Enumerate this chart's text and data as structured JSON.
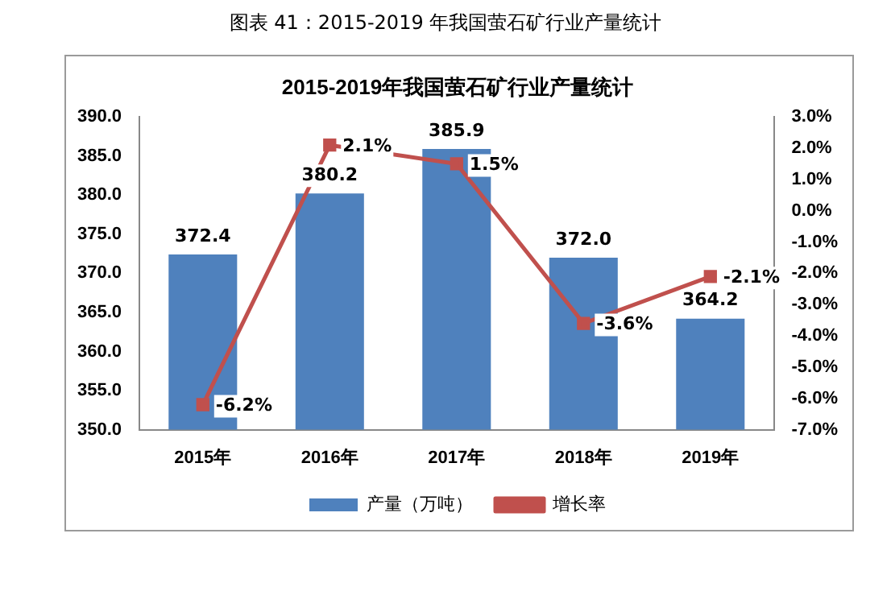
{
  "chart_data": {
    "type": "bar",
    "title": "2015-2019年我国萤石矿行业产量统计",
    "annotations": [
      "图表 41：2015-2019 年我国萤石矿行业产量统计"
    ],
    "categories": [
      "2015年",
      "2016年",
      "2017年",
      "2018年",
      "2019年"
    ],
    "series": [
      {
        "name": "产量（万吨）",
        "color": "#4f81bd",
        "values": [
          372.4,
          380.2,
          385.9,
          372.0,
          364.2
        ],
        "value_labels": [
          "372.4",
          "380.2",
          "385.9",
          "372.0",
          "364.2"
        ]
      },
      {
        "name": "增长率",
        "type": "line",
        "axis": "y2",
        "color": "#c0504d",
        "marker": "square",
        "values": [
          -6.2,
          2.1,
          1.5,
          -3.6,
          -2.1
        ],
        "value_labels": [
          "-6.2%",
          "2.1%",
          "1.5%",
          "-3.6%",
          "-2.1%"
        ]
      }
    ],
    "ylim": [
      350,
      390
    ],
    "yticks": [
      {
        "value": 350,
        "label": "350.0"
      },
      {
        "value": 355,
        "label": "355.0"
      },
      {
        "value": 360,
        "label": "360.0"
      },
      {
        "value": 365,
        "label": "365.0"
      },
      {
        "value": 370,
        "label": "370.0"
      },
      {
        "value": 375,
        "label": "375.0"
      },
      {
        "value": 380,
        "label": "380.0"
      },
      {
        "value": 385,
        "label": "385.0"
      },
      {
        "value": 390,
        "label": "390.0"
      }
    ],
    "y2lim": [
      -7,
      3
    ],
    "y2ticks": [
      {
        "value": -7,
        "label": "-7.0%"
      },
      {
        "value": -6,
        "label": "-6.0%"
      },
      {
        "value": -5,
        "label": "-5.0%"
      },
      {
        "value": -4,
        "label": "-4.0%"
      },
      {
        "value": -3,
        "label": "-3.0%"
      },
      {
        "value": -2,
        "label": "-2.0%"
      },
      {
        "value": -1,
        "label": "-1.0%"
      },
      {
        "value": 0,
        "label": "0.0%"
      },
      {
        "value": 1,
        "label": "1.0%"
      },
      {
        "value": 2,
        "label": "2.0%"
      },
      {
        "value": 3,
        "label": "3.0%"
      }
    ],
    "grid": false,
    "legend": "bottom"
  }
}
